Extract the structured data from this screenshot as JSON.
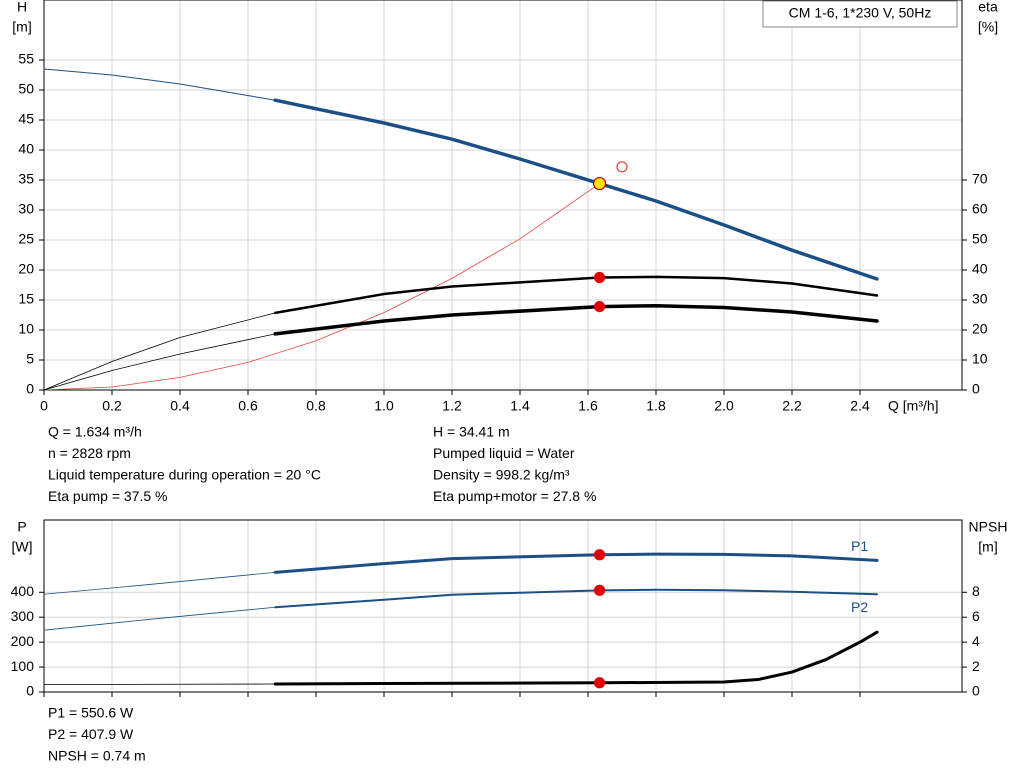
{
  "chart_data": [
    {
      "type": "line",
      "title": "CM 1-6, 1*230 V, 50Hz",
      "ylabel": "H",
      "yunit": "[m]",
      "y2label": "eta",
      "y2unit": "[%]",
      "xlabel": "Q [m³/h]",
      "xlim": [
        0,
        2.7
      ],
      "xticks": [
        0,
        0.2,
        0.4,
        0.6,
        0.8,
        {
          "value": 1,
          "label": "1.0"
        },
        1.2,
        1.4,
        1.6,
        1.8,
        {
          "value": 2,
          "label": "2.0"
        },
        2.2,
        2.4
      ],
      "ylim": [
        0,
        65
      ],
      "yticks": [
        0,
        5,
        10,
        15,
        20,
        25,
        30,
        35,
        40,
        45,
        50,
        55
      ],
      "y2lim": [
        0,
        130
      ],
      "y2ticks": [
        0,
        10,
        20,
        30,
        40,
        50,
        60,
        70
      ],
      "grid": true,
      "show_xtick_labels": true,
      "series": [
        {
          "color": "#1b4f86",
          "width": 1,
          "x": [
            0,
            0.2,
            0.4,
            0.68
          ],
          "values": [
            53.5,
            52.5,
            51,
            48.3
          ]
        },
        {
          "color": "#1b4f86",
          "width": 3.5,
          "x": [
            0.68,
            1.0,
            1.2,
            1.4,
            1.634,
            1.8,
            2.0,
            2.2,
            2.45
          ],
          "values": [
            48.3,
            44.5,
            41.8,
            38.5,
            34.41,
            31.5,
            27.5,
            23.3,
            18.5
          ]
        },
        {
          "color": "#e8463a",
          "width": 0.8,
          "x": [
            0,
            0.2,
            0.4,
            0.6,
            0.8,
            1.0,
            1.2,
            1.4,
            1.634
          ],
          "values": [
            0,
            0.5,
            2.1,
            4.6,
            8.2,
            12.9,
            18.6,
            25.2,
            34.41
          ]
        },
        {
          "color": "#000000",
          "width": 0.8,
          "axis": "y2",
          "x": [
            0,
            0.2,
            0.4,
            0.68
          ],
          "values": [
            0,
            9.5,
            17.5,
            25.7
          ]
        },
        {
          "color": "#000000",
          "width": 2.5,
          "axis": "y2",
          "x": [
            0.68,
            1.0,
            1.2,
            1.634,
            1.8,
            2.0,
            2.2,
            2.45
          ],
          "values": [
            25.7,
            32,
            34.5,
            37.5,
            37.7,
            37.3,
            35.5,
            31.5
          ]
        },
        {
          "color": "#000000",
          "width": 0.8,
          "axis": "y2",
          "x": [
            0,
            0.2,
            0.4,
            0.68
          ],
          "values": [
            0,
            6.5,
            12,
            18.7
          ]
        },
        {
          "color": "#000000",
          "width": 3.5,
          "axis": "y2",
          "x": [
            0.68,
            1.0,
            1.2,
            1.634,
            1.8,
            2.0,
            2.2,
            2.45
          ],
          "values": [
            18.7,
            23,
            25,
            27.8,
            28.1,
            27.5,
            26,
            23
          ]
        }
      ],
      "markers": [
        {
          "x": 1.634,
          "y": 34.41,
          "color": "#ffe600",
          "stroke": "#c00000",
          "r": 6
        },
        {
          "x": 1.634,
          "y": 37.5,
          "axis": "y2",
          "color": "#e00000",
          "stroke": "#e00000",
          "r": 5
        },
        {
          "x": 1.634,
          "y": 27.8,
          "axis": "y2",
          "color": "#e00000",
          "stroke": "#e00000",
          "r": 5
        },
        {
          "x": 1.7,
          "y": 37.2,
          "color": "none",
          "stroke": "#e8463a",
          "r": 5
        }
      ],
      "info_left": [
        "Q = 1.634 m³/h",
        "n = 2828 rpm",
        "Liquid temperature during operation = 20 °C",
        "Eta pump = 37.5 %"
      ],
      "info_right": [
        "H = 34.41 m",
        "Pumped liquid = Water",
        "Density = 998.2 kg/m³",
        "Eta pump+motor = 27.8 %"
      ]
    },
    {
      "type": "line",
      "ylabel": "P",
      "yunit": "[W]",
      "y2label": "NPSH",
      "y2unit": "[m]",
      "xlim": [
        0,
        2.7
      ],
      "xticks": [
        0,
        0.2,
        0.4,
        0.6,
        0.8,
        1,
        1.2,
        1.4,
        1.6,
        1.8,
        2,
        2.2,
        2.4
      ],
      "ylim": [
        0,
        690
      ],
      "yticks": [
        0,
        100,
        200,
        300,
        400
      ],
      "y2lim": [
        0,
        13.8
      ],
      "y2ticks": [
        0,
        2,
        4,
        6,
        8
      ],
      "grid": true,
      "show_xtick_labels": false,
      "series": [
        {
          "color": "#1b4f86",
          "width": 0.8,
          "x": [
            0,
            0.3,
            0.68
          ],
          "values": [
            392,
            430,
            480
          ]
        },
        {
          "name": "P1",
          "color": "#1b4f86",
          "width": 3,
          "x": [
            0.68,
            1.0,
            1.2,
            1.634,
            1.8,
            2.0,
            2.2,
            2.45
          ],
          "values": [
            480,
            515,
            535,
            550.6,
            553,
            552,
            546,
            528
          ]
        },
        {
          "color": "#1b4f86",
          "width": 0.8,
          "x": [
            0,
            0.3,
            0.68
          ],
          "values": [
            248,
            290,
            340
          ]
        },
        {
          "name": "P2",
          "color": "#1b4f86",
          "width": 2,
          "x": [
            0.68,
            1.0,
            1.2,
            1.634,
            1.8,
            2.0,
            2.2,
            2.45
          ],
          "values": [
            340,
            370,
            390,
            407.9,
            410,
            408,
            402,
            392
          ]
        },
        {
          "color": "#000000",
          "width": 0.8,
          "axis": "y2",
          "x": [
            0,
            0.68
          ],
          "values": [
            0.6,
            0.64
          ]
        },
        {
          "color": "#000000",
          "width": 3,
          "axis": "y2",
          "x": [
            0.68,
            1.0,
            1.634,
            2.0,
            2.1,
            2.2,
            2.3,
            2.4,
            2.45
          ],
          "values": [
            0.64,
            0.68,
            0.74,
            0.8,
            1.0,
            1.6,
            2.6,
            4.0,
            4.8
          ]
        }
      ],
      "markers": [
        {
          "x": 1.634,
          "y": 550.6,
          "color": "#e00000",
          "stroke": "#e00000",
          "r": 5
        },
        {
          "x": 1.634,
          "y": 407.9,
          "color": "#e00000",
          "stroke": "#e00000",
          "r": 5
        },
        {
          "x": 1.634,
          "y": 0.74,
          "axis": "y2",
          "color": "#e00000",
          "stroke": "#e00000",
          "r": 5
        }
      ],
      "info": [
        "P1 = 550.6 W",
        "P2 = 407.9 W",
        "NPSH = 0.74 m"
      ]
    }
  ]
}
